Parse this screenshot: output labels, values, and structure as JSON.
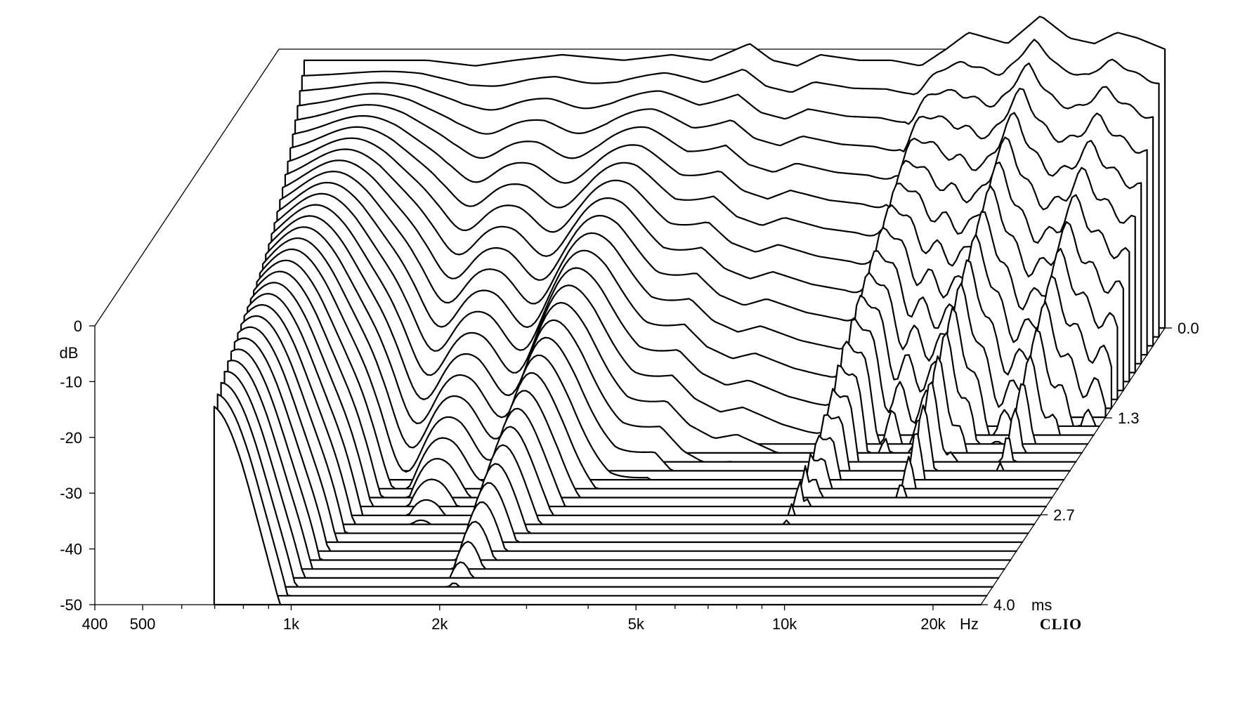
{
  "chart_data": {
    "type": "waterfall",
    "x_axis": {
      "scale": "log",
      "range_hz": [
        400,
        25000
      ],
      "tick_labels": [
        "400",
        "500",
        "1k",
        "2k",
        "5k",
        "10k",
        "20k"
      ],
      "tick_values_hz": [
        400,
        500,
        1000,
        2000,
        5000,
        10000,
        20000
      ],
      "unit": "Hz"
    },
    "y_axis": {
      "label": "dB",
      "range_db": [
        -50,
        0
      ],
      "tick_labels": [
        "0",
        "-10",
        "-20",
        "-30",
        "-40",
        "-50"
      ],
      "tick_values_db": [
        0,
        -10,
        -20,
        -30,
        -40,
        -50
      ]
    },
    "z_axis": {
      "unit": "ms",
      "range_ms": [
        0,
        4.0
      ],
      "tick_labels": [
        "0.0",
        "1.3",
        "2.7",
        "4.0"
      ],
      "tick_values_ms": [
        0.0,
        1.3,
        2.7,
        4.0
      ]
    },
    "slice_count": 32,
    "brand": "CLIO",
    "first_slice_db": {
      "freq_hz": [
        450,
        600,
        800,
        1000,
        1200,
        1500,
        2000,
        2500,
        3000,
        3600,
        4000,
        4500,
        5000,
        6000,
        7000,
        8000,
        9000,
        10000,
        12000,
        14000,
        16000,
        18000,
        20000,
        22000,
        25000
      ],
      "level_db": [
        -2,
        -2,
        -2,
        -3,
        -2,
        -1,
        -2,
        -1,
        -2,
        1,
        -2,
        -3,
        -1,
        -2,
        -2,
        -3,
        0,
        3,
        1,
        6,
        2,
        1,
        3,
        2,
        0
      ]
    },
    "resonance_ridges_hz": [
      2500,
      9000,
      14000,
      20000
    ]
  }
}
